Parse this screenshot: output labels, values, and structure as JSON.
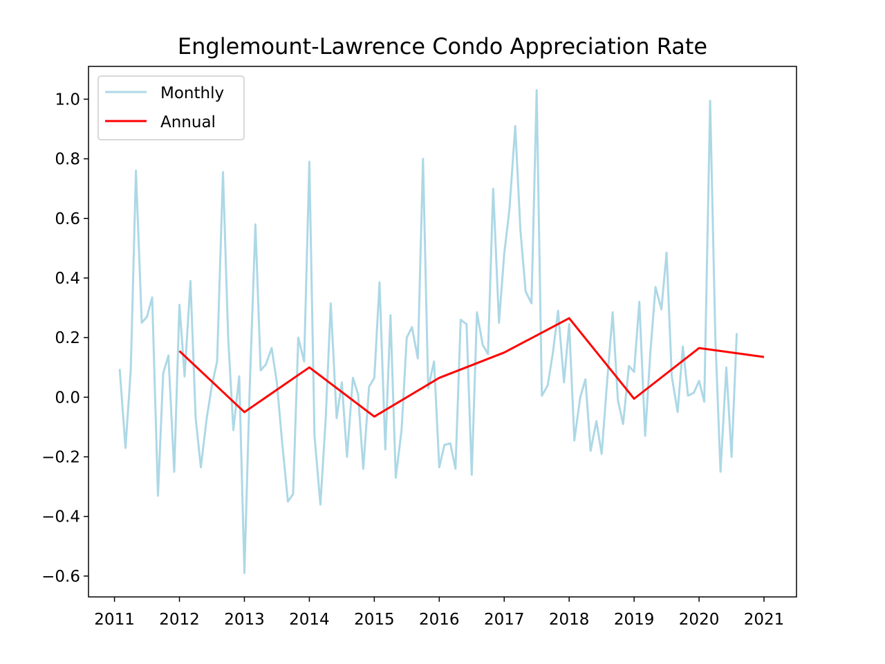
{
  "chart_data": {
    "type": "line",
    "title": "Englemount-Lawrence Condo Appreciation Rate",
    "xlabel": "",
    "ylabel": "",
    "xlim": [
      2010.6,
      2021.5
    ],
    "ylim": [
      -0.67,
      1.11
    ],
    "x_ticks": [
      "2011",
      "2012",
      "2013",
      "2014",
      "2015",
      "2016",
      "2017",
      "2018",
      "2019",
      "2020",
      "2021"
    ],
    "y_ticks": [
      -0.6,
      -0.4,
      -0.2,
      0.0,
      0.2,
      0.4,
      0.6,
      0.8,
      1.0
    ],
    "y_tick_labels": [
      "−0.6",
      "−0.4",
      "−0.2",
      "0.0",
      "0.2",
      "0.4",
      "0.6",
      "0.8",
      "1.0"
    ],
    "grid": false,
    "legend": {
      "position": "upper-left"
    },
    "series": [
      {
        "name": "Monthly",
        "color": "#add8e6",
        "x": [
          2011.08,
          2011.17,
          2011.25,
          2011.33,
          2011.42,
          2011.5,
          2011.58,
          2011.67,
          2011.75,
          2011.83,
          2011.92,
          2012.0,
          2012.08,
          2012.17,
          2012.25,
          2012.33,
          2012.42,
          2012.5,
          2012.58,
          2012.67,
          2012.75,
          2012.83,
          2012.92,
          2013.0,
          2013.08,
          2013.17,
          2013.25,
          2013.33,
          2013.42,
          2013.5,
          2013.58,
          2013.67,
          2013.75,
          2013.83,
          2013.92,
          2014.0,
          2014.08,
          2014.17,
          2014.25,
          2014.33,
          2014.42,
          2014.5,
          2014.58,
          2014.67,
          2014.75,
          2014.83,
          2014.92,
          2015.0,
          2015.08,
          2015.17,
          2015.25,
          2015.33,
          2015.42,
          2015.5,
          2015.58,
          2015.67,
          2015.75,
          2015.83,
          2015.92,
          2016.0,
          2016.08,
          2016.17,
          2016.25,
          2016.33,
          2016.42,
          2016.5,
          2016.58,
          2016.67,
          2016.75,
          2016.83,
          2016.92,
          2017.0,
          2017.08,
          2017.17,
          2017.25,
          2017.33,
          2017.42,
          2017.5,
          2017.58,
          2017.67,
          2017.75,
          2017.83,
          2017.92,
          2018.0,
          2018.08,
          2018.17,
          2018.25,
          2018.33,
          2018.42,
          2018.5,
          2018.58,
          2018.67,
          2018.75,
          2018.83,
          2018.92,
          2019.0,
          2019.08,
          2019.17,
          2019.25,
          2019.33,
          2019.42,
          2019.5,
          2019.58,
          2019.67,
          2019.75,
          2019.83,
          2019.92,
          2020.0,
          2020.08,
          2020.17,
          2020.25,
          2020.33,
          2020.42,
          2020.5,
          2020.58
        ],
        "y": [
          0.095,
          -0.17,
          0.09,
          0.76,
          0.25,
          0.27,
          0.335,
          -0.33,
          0.08,
          0.14,
          -0.25,
          0.31,
          0.07,
          0.39,
          -0.07,
          -0.235,
          -0.07,
          0.04,
          0.12,
          0.755,
          0.2,
          -0.11,
          0.07,
          -0.59,
          0.02,
          0.58,
          0.09,
          0.11,
          0.165,
          0.05,
          -0.15,
          -0.35,
          -0.325,
          0.2,
          0.12,
          0.79,
          -0.13,
          -0.36,
          -0.08,
          0.315,
          -0.07,
          0.05,
          -0.2,
          0.065,
          0.01,
          -0.24,
          0.035,
          0.065,
          0.385,
          -0.175,
          0.275,
          -0.27,
          -0.11,
          0.2,
          0.235,
          0.13,
          0.8,
          0.03,
          0.12,
          -0.235,
          -0.16,
          -0.155,
          -0.24,
          0.26,
          0.245,
          -0.26,
          0.285,
          0.175,
          0.145,
          0.7,
          0.25,
          0.48,
          0.63,
          0.91,
          0.56,
          0.355,
          0.315,
          1.03,
          0.005,
          0.04,
          0.15,
          0.29,
          0.05,
          0.245,
          -0.145,
          0.0,
          0.06,
          -0.18,
          -0.08,
          -0.19,
          0.04,
          0.285,
          -0.01,
          -0.09,
          0.105,
          0.085,
          0.32,
          -0.13,
          0.15,
          0.37,
          0.295,
          0.485,
          0.07,
          -0.05,
          0.17,
          0.005,
          0.015,
          0.055,
          -0.015,
          0.995,
          0.2,
          -0.25,
          0.1,
          -0.2,
          0.215
        ]
      },
      {
        "name": "Annual",
        "color": "#ff0000",
        "x": [
          2012.0,
          2013.0,
          2014.0,
          2015.0,
          2016.0,
          2017.0,
          2018.0,
          2019.0,
          2020.0,
          2021.0
        ],
        "y": [
          0.155,
          -0.05,
          0.1,
          -0.065,
          0.065,
          0.15,
          0.265,
          -0.005,
          0.165,
          0.135
        ]
      }
    ]
  }
}
